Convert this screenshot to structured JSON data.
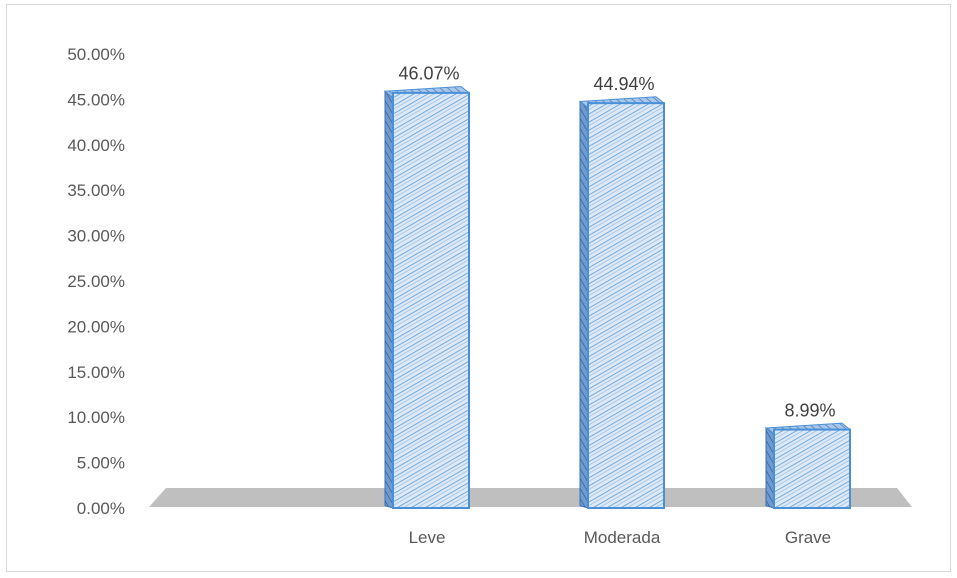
{
  "chart_data": {
    "type": "bar",
    "categories": [
      "Leve",
      "Moderada",
      "Grave"
    ],
    "values": [
      46.07,
      44.94,
      8.99
    ],
    "data_labels": [
      "46.07%",
      "44.94%",
      "8.99%"
    ],
    "y_ticks": [
      "0.00%",
      "5.00%",
      "10.00%",
      "15.00%",
      "20.00%",
      "25.00%",
      "30.00%",
      "35.00%",
      "40.00%",
      "45.00%",
      "50.00%"
    ],
    "ylim": [
      0,
      50
    ],
    "grid": false,
    "legend": "none",
    "style": "3d-column"
  },
  "colors": {
    "bar_fill": "#dde9f6",
    "bar_hatch": "#5b9bd5",
    "bar_outline": "#4a90d9",
    "bar_side": "#3f6fa8",
    "floor": "#bfbfbf",
    "axis_text": "#595959"
  }
}
